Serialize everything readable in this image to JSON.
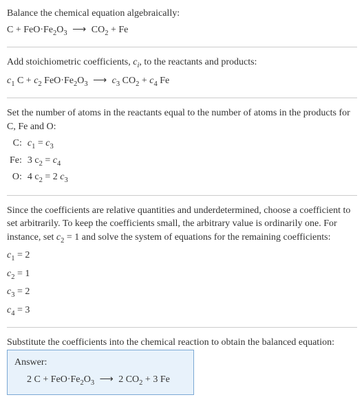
{
  "header": {
    "line1": "Balance the chemical equation algebraically:"
  },
  "eq1": {
    "C": "C",
    "plus": " + ",
    "FeO": "FeO·Fe",
    "two1": "2",
    "O": "O",
    "three1": "3",
    "arrow": "⟶",
    "CO": "CO",
    "two2": "2",
    "Fe": "Fe"
  },
  "stoich": {
    "text1": "Add stoichiometric coefficients, ",
    "ci_c": "c",
    "ci_i": "i",
    "text2": ", to the reactants and products:"
  },
  "eq2": {
    "c": "c",
    "n1": "1",
    "C": " C + ",
    "n2": "2",
    "FeO": " FeO·Fe",
    "two1": "2",
    "O": "O",
    "three1": "3",
    "arrow": "⟶",
    "n3": "3",
    "CO": " CO",
    "two2": "2",
    "plus": " + ",
    "n4": "4",
    "Fe": " Fe"
  },
  "atoms": {
    "text": "Set the number of atoms in the reactants equal to the number of atoms in the products for C, Fe and O:",
    "rows": {
      "C_label": "C:",
      "C_eq_l": "c",
      "C_eq_l1": "1",
      "C_eq_mid": " = ",
      "C_eq_r": "c",
      "C_eq_r1": "3",
      "Fe_label": "Fe:",
      "Fe_eq_l": "3 c",
      "Fe_eq_l1": "2",
      "Fe_eq_mid": " = ",
      "Fe_eq_r": "c",
      "Fe_eq_r1": "4",
      "O_label": "O:",
      "O_eq_l": "4 c",
      "O_eq_l1": "2",
      "O_eq_mid": " = 2 ",
      "O_eq_r": "c",
      "O_eq_r1": "3"
    }
  },
  "para": {
    "text_a": "Since the coefficients are relative quantities and underdetermined, choose a coefficient to set arbitrarily. To keep the coefficients small, the arbitrary value is ordinarily one. For instance, set ",
    "c": "c",
    "n2": "2",
    "text_b": " = 1 and solve the system of equations for the remaining coefficients:"
  },
  "solve": {
    "c": "c",
    "s1": "1",
    "e1": " = 2",
    "s2": "2",
    "e2": " = 1",
    "s3": "3",
    "e3": " = 2",
    "s4": "4",
    "e4": " = 3"
  },
  "final": {
    "text": "Substitute the coefficients into the chemical reaction to obtain the balanced equation:"
  },
  "answer": {
    "label": "Answer:",
    "a": "2 C + FeO·Fe",
    "two1": "2",
    "b": "O",
    "three1": "3",
    "arrow": "⟶",
    "c": "2 CO",
    "two2": "2",
    "d": " + 3 Fe"
  },
  "style": {
    "text_color": "#333333",
    "background": "#ffffff",
    "hr_color": "#cccccc",
    "answer_bg": "#e8f2fb",
    "answer_border": "#7aa8d4",
    "base_font_size": 14
  }
}
